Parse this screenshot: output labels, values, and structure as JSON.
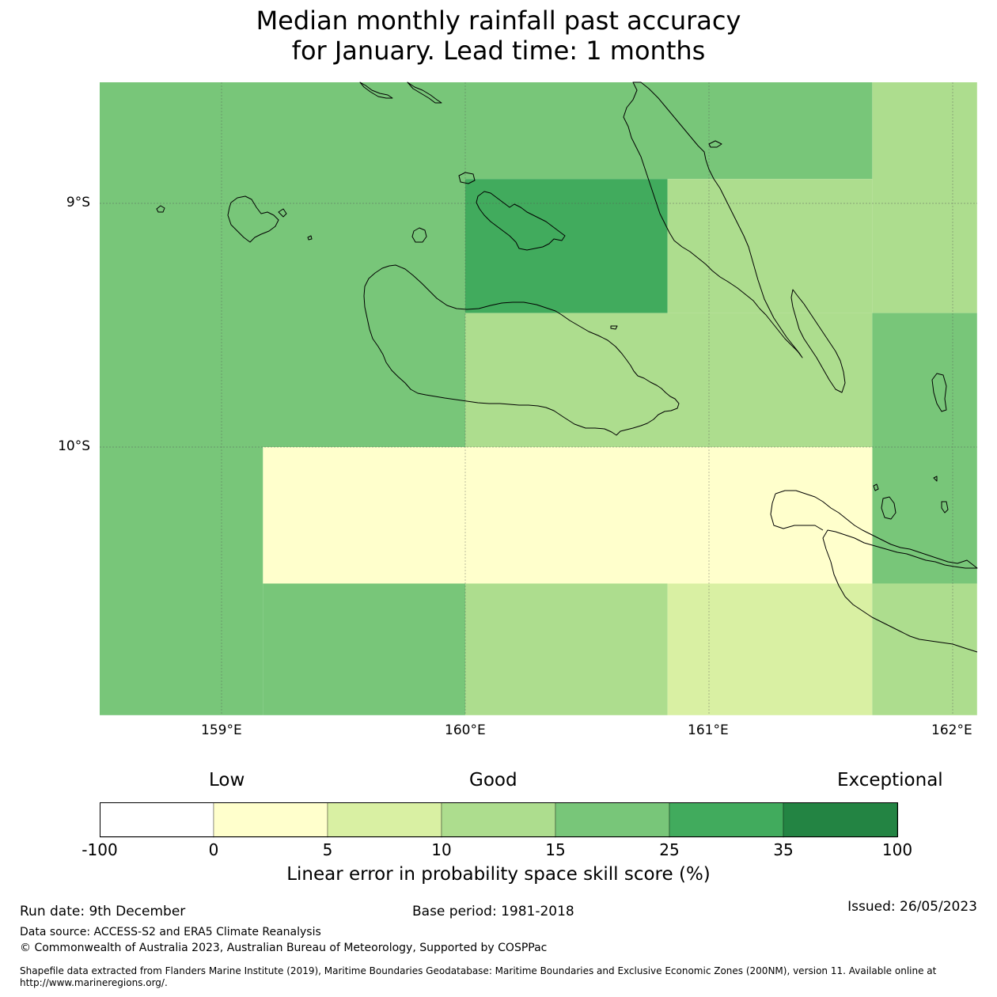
{
  "title": {
    "line1": "Median monthly rainfall past accuracy",
    "line2": "for January. Lead time: 1 months"
  },
  "map": {
    "lon_labels": [
      "159°E",
      "160°E",
      "161°E",
      "162°E"
    ],
    "lat_labels": [
      "9°S",
      "10°S"
    ],
    "coastline": "thin black outline",
    "grid": true
  },
  "chart_data": {
    "type": "heatmap",
    "x_axis": {
      "ticks": [
        159,
        160,
        161,
        162
      ],
      "tick_labels": [
        "159°E",
        "160°E",
        "161°E",
        "162°E"
      ],
      "range": [
        158.5,
        162.1
      ]
    },
    "y_axis": {
      "ticks": [
        -9,
        -10
      ],
      "tick_labels": [
        "9°S",
        "10°S"
      ],
      "range": [
        -11.1,
        -8.5
      ]
    },
    "cells": [
      {
        "lon": [
          158.5,
          160.0
        ],
        "lat": [
          -10.0,
          -8.5
        ],
        "bin": "15 to 25"
      },
      {
        "lon": [
          160.0,
          161.67
        ],
        "lat": [
          -8.9,
          -8.5
        ],
        "bin": "15 to 25"
      },
      {
        "lon": [
          161.67,
          162.1
        ],
        "lat": [
          -9.45,
          -8.5
        ],
        "bin": "10 to 15"
      },
      {
        "lon": [
          160.0,
          160.83
        ],
        "lat": [
          -9.45,
          -8.9
        ],
        "bin": "25 to 35"
      },
      {
        "lon": [
          160.83,
          161.67
        ],
        "lat": [
          -9.45,
          -8.9
        ],
        "bin": "10 to 15"
      },
      {
        "lon": [
          160.0,
          161.67
        ],
        "lat": [
          -10.0,
          -9.45
        ],
        "bin": "10 to 15"
      },
      {
        "lon": [
          161.67,
          162.1
        ],
        "lat": [
          -10.56,
          -9.45
        ],
        "bin": "15 to 25"
      },
      {
        "lon": [
          158.5,
          159.17
        ],
        "lat": [
          -11.1,
          -10.0
        ],
        "bin": "15 to 25"
      },
      {
        "lon": [
          159.17,
          161.67
        ],
        "lat": [
          -10.56,
          -10.0
        ],
        "bin": "0 to 5"
      },
      {
        "lon": [
          159.17,
          160.0
        ],
        "lat": [
          -11.1,
          -10.56
        ],
        "bin": "15 to 25"
      },
      {
        "lon": [
          160.0,
          160.83
        ],
        "lat": [
          -11.1,
          -10.56
        ],
        "bin": "10 to 15"
      },
      {
        "lon": [
          160.83,
          161.67
        ],
        "lat": [
          -11.1,
          -10.56
        ],
        "bin": "5 to 10"
      },
      {
        "lon": [
          161.67,
          162.1
        ],
        "lat": [
          -11.1,
          -10.56
        ],
        "bin": "10 to 15"
      }
    ],
    "bins": [
      {
        "range": "-100 to 0",
        "color": "#ffffff"
      },
      {
        "range": "0 to 5",
        "color": "#ffffcc"
      },
      {
        "range": "5 to 10",
        "color": "#d9f0a3"
      },
      {
        "range": "10 to 15",
        "color": "#addd8e"
      },
      {
        "range": "15 to 25",
        "color": "#78c679"
      },
      {
        "range": "25 to 35",
        "color": "#41ab5d"
      },
      {
        "range": "35 to 100",
        "color": "#238443"
      }
    ]
  },
  "colorbar": {
    "words": {
      "low": "Low",
      "good": "Good",
      "exceptional": "Exceptional"
    },
    "ticks": [
      "-100",
      "0",
      "5",
      "10",
      "15",
      "25",
      "35",
      "100"
    ],
    "label": "Linear error in probability space skill score (%)"
  },
  "footer": {
    "run_date": "Run date: 9th December",
    "base_period": "Base period: 1981-2018",
    "issued": "Issued: 26/05/2023",
    "data_source": "Data source: ACCESS-S2 and ERA5 Climate Reanalysis",
    "copyright": "© Commonwealth of Australia 2023, Australian Bureau of Meteorology, Supported by COSPPac",
    "shapefile": "Shapefile data extracted from Flanders Marine Institute (2019), Maritime Boundaries Geodatabase: Maritime Boundaries and Exclusive Economic Zones (200NM), version 11. Available online at http://www.marineregions.org/."
  }
}
